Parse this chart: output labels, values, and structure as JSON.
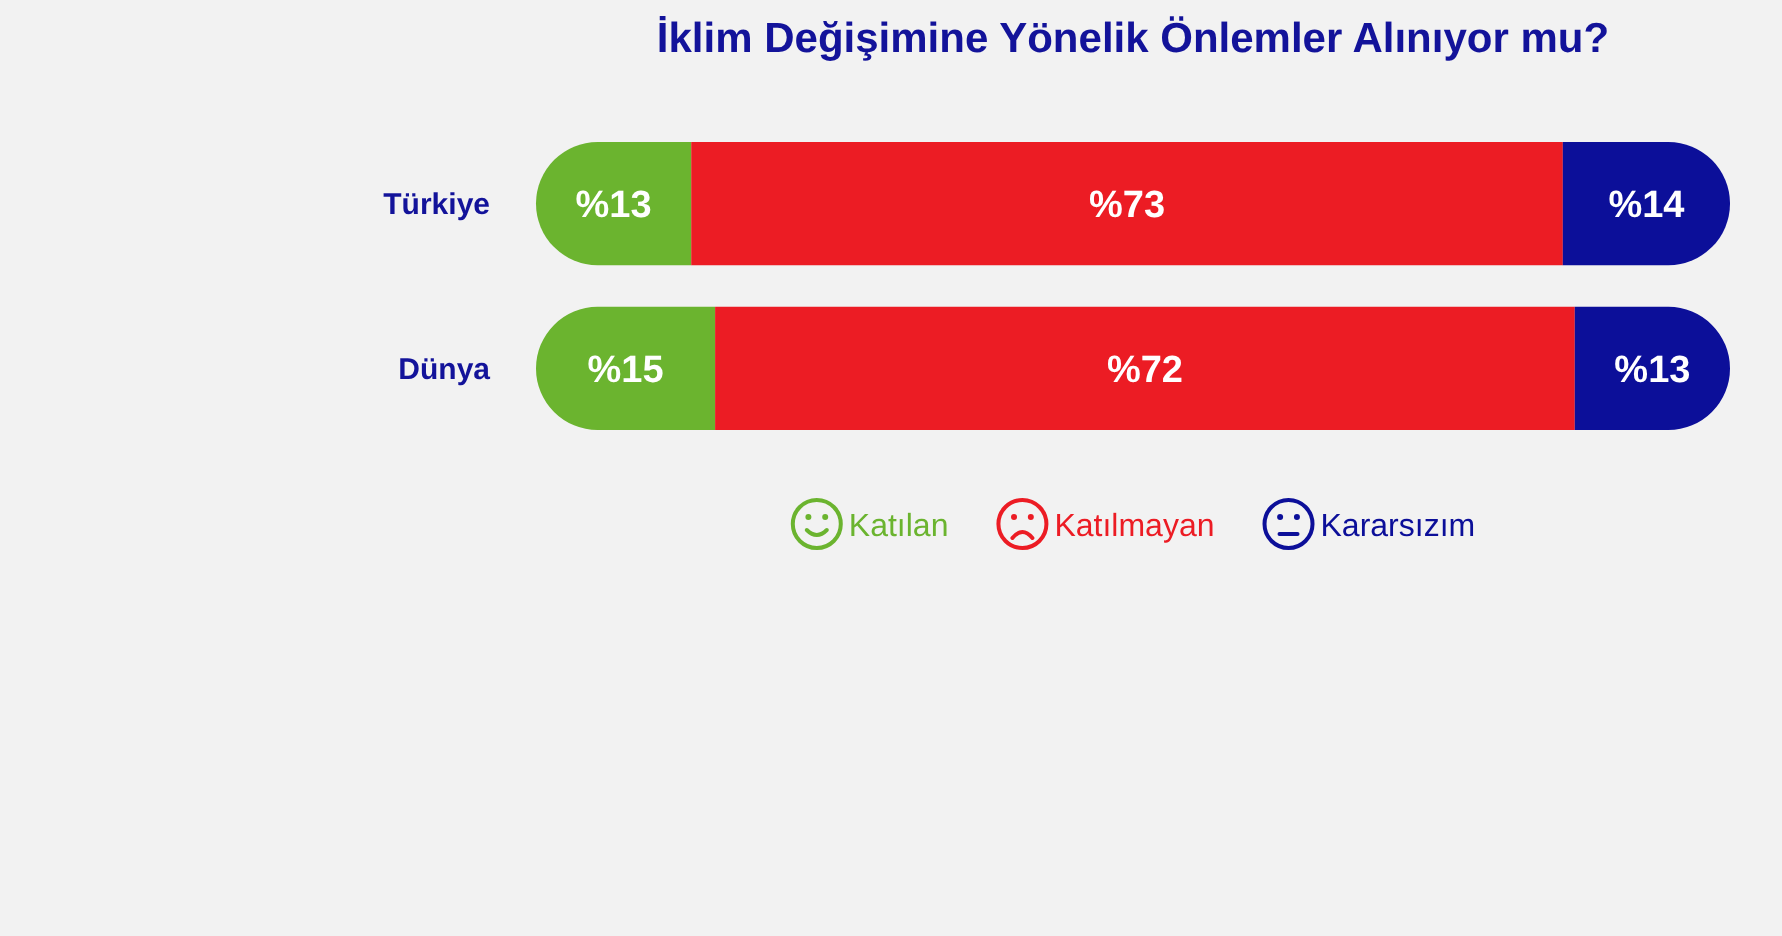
{
  "chart_data": {
    "type": "bar",
    "orientation": "horizontal",
    "stacked": true,
    "title": "İklim Değişimine Yönelik Önlemler Alınıyor mu?",
    "categories": [
      "Türkiye",
      "Dünya"
    ],
    "series": [
      {
        "name": "Katılan",
        "color": "#6bb42f",
        "values": [
          13,
          15
        ],
        "value_labels": [
          "%13",
          "%15"
        ]
      },
      {
        "name": "Katılmayan",
        "color": "#ec1c24",
        "values": [
          73,
          72
        ],
        "value_labels": [
          "%73",
          "%72"
        ]
      },
      {
        "name": "Kararsızım",
        "color": "#0c0f99",
        "values": [
          14,
          13
        ],
        "value_labels": [
          "%14",
          "%13"
        ]
      }
    ],
    "legend": "bottom",
    "tick_labels": "y"
  }
}
